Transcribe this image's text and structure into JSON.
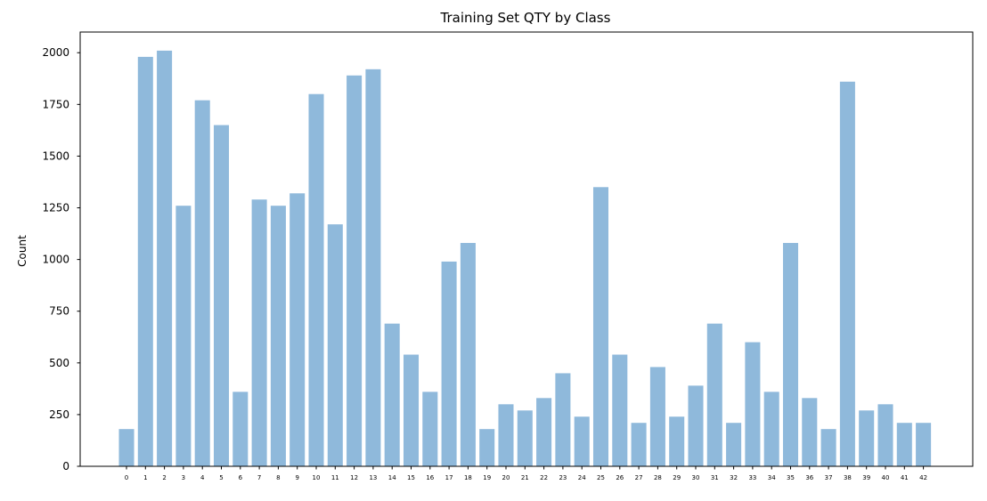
{
  "chart_data": {
    "type": "bar",
    "title": "Training Set QTY by Class",
    "xlabel": "",
    "ylabel": "Count",
    "ylim": [
      0,
      2100
    ],
    "yticks": [
      0,
      250,
      500,
      750,
      1000,
      1250,
      1500,
      1750,
      2000
    ],
    "categories": [
      "0",
      "1",
      "2",
      "3",
      "4",
      "5",
      "6",
      "7",
      "8",
      "9",
      "10",
      "11",
      "12",
      "13",
      "14",
      "15",
      "16",
      "17",
      "18",
      "19",
      "20",
      "21",
      "22",
      "23",
      "24",
      "25",
      "26",
      "27",
      "28",
      "29",
      "30",
      "31",
      "32",
      "33",
      "34",
      "35",
      "36",
      "37",
      "38",
      "39",
      "40",
      "41",
      "42"
    ],
    "values": [
      180,
      1980,
      2010,
      1260,
      1770,
      1650,
      360,
      1290,
      1260,
      1320,
      1800,
      1170,
      1890,
      1920,
      690,
      540,
      360,
      990,
      1080,
      180,
      300,
      270,
      330,
      450,
      240,
      1350,
      540,
      210,
      480,
      240,
      390,
      690,
      210,
      600,
      360,
      1080,
      330,
      180,
      1860,
      270,
      300,
      210,
      210
    ],
    "colors": {
      "bar": "#8fb9db",
      "axis": "#000000",
      "background": "#ffffff"
    },
    "grid": false
  }
}
